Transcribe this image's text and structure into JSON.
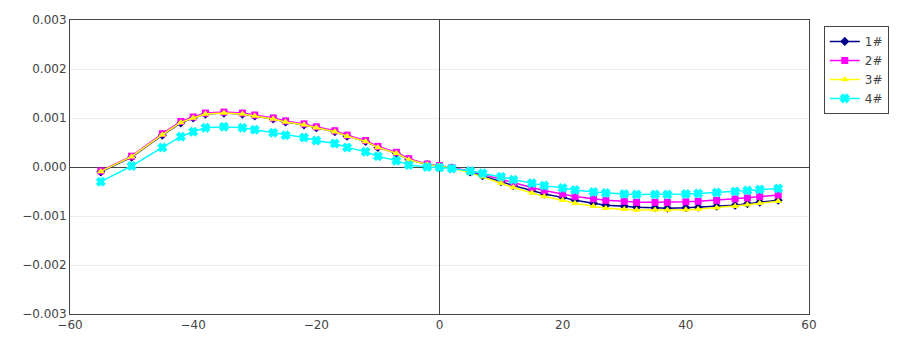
{
  "chart_data": {
    "type": "line",
    "x": [
      -55,
      -50,
      -45,
      -42,
      -40,
      -38,
      -35,
      -32,
      -30,
      -27,
      -25,
      -22,
      -20,
      -17,
      -15,
      -12,
      -10,
      -7,
      -5,
      -2,
      0,
      2,
      5,
      7,
      10,
      12,
      15,
      17,
      20,
      22,
      25,
      27,
      30,
      32,
      35,
      37,
      40,
      42,
      45,
      48,
      50,
      52,
      55
    ],
    "series": [
      {
        "name": "1#",
        "color": "#00008B",
        "marker": "diamond",
        "values": [
          -0.0001,
          0.0002,
          0.00065,
          0.0009,
          0.001,
          0.00108,
          0.0011,
          0.00108,
          0.00104,
          0.00098,
          0.00092,
          0.00086,
          0.0008,
          0.00072,
          0.00063,
          0.00052,
          0.0004,
          0.00028,
          0.00015,
          5e-05,
          2e-05,
          -2e-05,
          -0.0001,
          -0.00018,
          -0.0003,
          -0.00038,
          -0.00048,
          -0.00055,
          -0.00062,
          -0.00068,
          -0.00074,
          -0.00078,
          -0.0008,
          -0.00082,
          -0.00083,
          -0.00084,
          -0.00083,
          -0.00082,
          -0.0008,
          -0.00078,
          -0.00075,
          -0.00072,
          -0.00068
        ]
      },
      {
        "name": "2#",
        "color": "#FF00FF",
        "marker": "square",
        "values": [
          -8e-05,
          0.00022,
          0.00068,
          0.00093,
          0.00102,
          0.0011,
          0.00112,
          0.0011,
          0.00106,
          0.001,
          0.00094,
          0.00088,
          0.00082,
          0.00074,
          0.00065,
          0.00054,
          0.00042,
          0.0003,
          0.00017,
          6e-05,
          3e-05,
          -1e-05,
          -8e-05,
          -0.00015,
          -0.00025,
          -0.00033,
          -0.00042,
          -0.00048,
          -0.00055,
          -0.0006,
          -0.00065,
          -0.00068,
          -0.0007,
          -0.00072,
          -0.00072,
          -0.00072,
          -0.00071,
          -0.0007,
          -0.00068,
          -0.00065,
          -0.00063,
          -0.0006,
          -0.00057
        ]
      },
      {
        "name": "3#",
        "color": "#FFFF00",
        "marker": "triangle-up",
        "values": [
          -9e-05,
          0.00021,
          0.00066,
          0.00091,
          0.001,
          0.00108,
          0.0011,
          0.00108,
          0.00104,
          0.00098,
          0.00092,
          0.00086,
          0.0008,
          0.00072,
          0.00063,
          0.00052,
          0.0004,
          0.00028,
          0.00015,
          5e-05,
          2e-05,
          -2e-05,
          -0.00012,
          -0.0002,
          -0.00033,
          -0.00042,
          -0.00053,
          -0.0006,
          -0.00068,
          -0.00074,
          -0.0008,
          -0.00084,
          -0.00086,
          -0.00088,
          -0.00088,
          -0.00088,
          -0.00087,
          -0.00086,
          -0.00083,
          -0.0008,
          -0.00077,
          -0.00074,
          -0.0007
        ]
      },
      {
        "name": "4#",
        "color": "#00FFFF",
        "marker": "x",
        "values": [
          -0.0003,
          2e-05,
          0.0004,
          0.00062,
          0.00072,
          0.0008,
          0.00082,
          0.0008,
          0.00076,
          0.0007,
          0.00065,
          0.0006,
          0.00054,
          0.00048,
          0.0004,
          0.00031,
          0.00022,
          0.00013,
          4e-05,
          0.0,
          -1e-05,
          -3e-05,
          -8e-05,
          -0.00013,
          -0.0002,
          -0.00026,
          -0.00033,
          -0.00038,
          -0.00043,
          -0.00047,
          -0.00051,
          -0.00053,
          -0.00055,
          -0.00056,
          -0.00056,
          -0.00056,
          -0.00055,
          -0.00054,
          -0.00052,
          -0.0005,
          -0.00048,
          -0.00046,
          -0.00044
        ]
      }
    ],
    "xlim": [
      -60,
      60
    ],
    "ylim": [
      -0.003,
      0.003
    ],
    "xticks": [
      -60,
      -40,
      -20,
      0,
      20,
      40,
      60
    ],
    "yticks": [
      -0.003,
      -0.002,
      -0.001,
      {
        "value": 0,
        "label": "0.000"
      },
      0.001,
      0.002,
      0.003
    ],
    "grid": true,
    "legend": "upper right"
  }
}
